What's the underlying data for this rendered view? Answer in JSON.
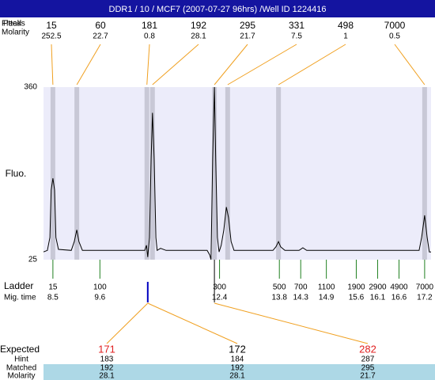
{
  "chart_data": {
    "type": "line",
    "title": "DDR1 / 10 / MCF7 (2007-07-27 96hrs) /Well ID 1224416",
    "ylabel": "Fluo.",
    "ylim": [
      25,
      360
    ],
    "yticks": [
      360,
      25
    ],
    "xlim": [
      8.28,
      17.35
    ],
    "color": "#000000",
    "x": [
      8.28,
      8.37,
      8.43,
      8.46,
      8.5,
      8.54,
      8.57,
      8.63,
      8.93,
      9.0,
      9.06,
      9.11,
      9.19,
      10.65,
      10.69,
      10.72,
      10.76,
      10.8,
      10.83,
      10.87,
      10.91,
      10.94,
      11.02,
      11.15,
      12.11,
      12.17,
      12.2,
      12.24,
      12.28,
      12.31,
      12.35,
      12.39,
      12.44,
      12.5,
      12.56,
      12.61,
      12.67,
      12.74,
      13.65,
      13.72,
      13.78,
      13.83,
      13.93,
      14.26,
      14.35,
      14.44,
      17.07,
      17.13,
      17.2,
      17.26,
      17.31,
      17.35
    ],
    "values": [
      40,
      43,
      68,
      160,
      183,
      160,
      68,
      45,
      43,
      60,
      83,
      60,
      43,
      43,
      53,
      30,
      68,
      222,
      310,
      222,
      68,
      43,
      47,
      43,
      43,
      34,
      25,
      222,
      360,
      222,
      68,
      40,
      53,
      83,
      127,
      107,
      60,
      43,
      43,
      50,
      60,
      50,
      43,
      43,
      48,
      43,
      43,
      68,
      111,
      68,
      40,
      40
    ],
    "peaks": {
      "row_labels": [
        "Fitted",
        "Peaks",
        "Molarity"
      ],
      "sizes": [
        15,
        60,
        181,
        192,
        295,
        331,
        498,
        7000
      ],
      "molarity": [
        252.5,
        22.7,
        0.8,
        28.1,
        21.7,
        7.5,
        1,
        0.5
      ],
      "x": [
        8.5,
        9.06,
        10.7,
        10.83,
        12.28,
        12.59,
        13.78,
        17.2
      ]
    },
    "ladder": {
      "label": "Ladder",
      "time_label": "Mig. time",
      "sizes": [
        15,
        100,
        300,
        500,
        700,
        1100,
        1900,
        2900,
        4900,
        7000
      ],
      "x": [
        8.5,
        9.6,
        12.4,
        13.8,
        14.3,
        14.9,
        15.6,
        16.1,
        16.6,
        17.2
      ]
    },
    "expected": {
      "row_labels": [
        "Expected",
        "Hint",
        "Matched",
        "Molarity"
      ],
      "values": [
        171,
        172,
        282
      ],
      "hint": [
        183,
        184,
        287
      ],
      "matched": [
        192,
        192,
        295
      ],
      "molarity": [
        28.1,
        28.1,
        21.7
      ],
      "x": [
        10.72,
        10.72,
        12.28
      ]
    }
  }
}
